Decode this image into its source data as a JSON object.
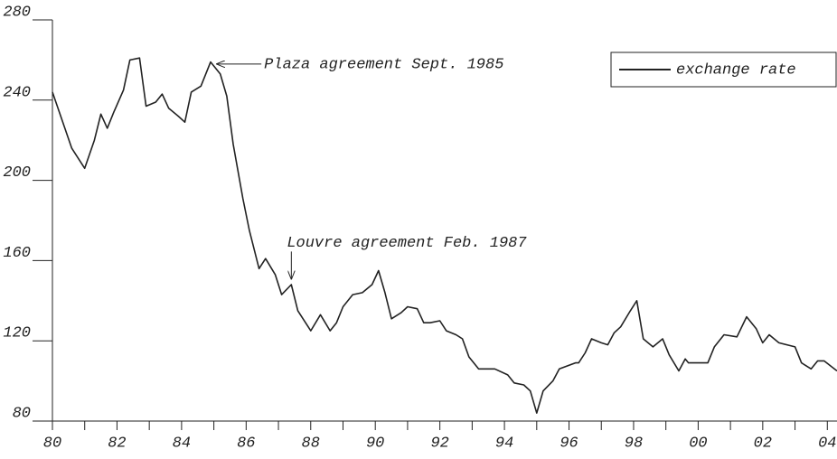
{
  "chart_data": {
    "type": "line",
    "x": [
      1980.0,
      1980.3,
      1980.6,
      1981.0,
      1981.3,
      1981.5,
      1981.7,
      1981.9,
      1982.2,
      1982.4,
      1982.7,
      1982.9,
      1983.2,
      1983.4,
      1983.6,
      1983.9,
      1984.1,
      1984.3,
      1984.6,
      1984.9,
      1985.2,
      1985.4,
      1985.6,
      1985.9,
      1986.1,
      1986.4,
      1986.6,
      1986.9,
      1987.1,
      1987.4,
      1987.6,
      1988.0,
      1988.3,
      1988.6,
      1988.8,
      1989.0,
      1989.3,
      1989.6,
      1989.9,
      1990.1,
      1990.3,
      1990.5,
      1990.8,
      1991.0,
      1991.3,
      1991.5,
      1991.7,
      1992.0,
      1992.2,
      1992.5,
      1992.7,
      1992.9,
      1993.2,
      1993.7,
      1994.1,
      1994.3,
      1994.6,
      1994.8,
      1995.0,
      1995.2,
      1995.5,
      1995.7,
      1996.2,
      1996.3,
      1996.5,
      1996.7,
      1997.0,
      1997.2,
      1997.4,
      1997.6,
      1997.9,
      1998.1,
      1998.3,
      1998.6,
      1998.9,
      1999.1,
      1999.4,
      1999.6,
      1999.7,
      2000.3,
      2000.5,
      2000.8,
      2001.2,
      2001.5,
      2001.8,
      2002.0,
      2002.2,
      2002.5,
      2003.0,
      2003.2,
      2003.5,
      2003.7,
      2003.9,
      2004.3
    ],
    "series": [
      {
        "name": "exchange rate",
        "color": "#222222",
        "values": [
          244,
          230,
          216,
          206,
          220,
          233,
          226,
          234,
          245,
          260,
          261,
          237,
          239,
          243,
          236,
          232,
          229,
          244,
          247,
          259,
          253,
          242,
          218,
          191,
          175,
          156,
          161,
          153,
          143,
          148,
          135,
          125,
          133,
          125,
          129,
          137,
          143,
          144,
          148,
          155,
          144,
          131,
          134,
          137,
          136,
          129,
          129,
          130,
          125,
          123,
          121,
          112,
          106,
          106,
          103,
          99,
          98,
          95,
          84,
          95,
          100,
          106,
          109,
          109,
          114,
          121,
          119,
          118,
          124,
          127,
          135,
          140,
          121,
          117,
          121,
          113,
          105,
          111,
          109,
          109,
          117,
          123,
          122,
          132,
          126,
          119,
          123,
          119,
          117,
          109,
          106,
          110,
          110,
          105
        ]
      }
    ],
    "xlim": [
      1980,
      2004.3
    ],
    "xticks": [
      {
        "value": 1980,
        "label": "80"
      },
      {
        "value": 1982,
        "label": "82"
      },
      {
        "value": 1984,
        "label": "84"
      },
      {
        "value": 1986,
        "label": "86"
      },
      {
        "value": 1988,
        "label": "88"
      },
      {
        "value": 1990,
        "label": "90"
      },
      {
        "value": 1992,
        "label": "92"
      },
      {
        "value": 1994,
        "label": "94"
      },
      {
        "value": 1996,
        "label": "96"
      },
      {
        "value": 1998,
        "label": "98"
      },
      {
        "value": 2000,
        "label": "00"
      },
      {
        "value": 2002,
        "label": "02"
      },
      {
        "value": 2004,
        "label": "04"
      }
    ],
    "xminorticks": [
      1981,
      1983,
      1985,
      1987,
      1989,
      1991,
      1993,
      1995,
      1997,
      1999,
      2001,
      2003
    ],
    "ylim": [
      80,
      280
    ],
    "yticks": [
      80,
      120,
      160,
      200,
      240,
      280
    ],
    "legend": "upper right",
    "annotations": [
      {
        "text": "Plaza agreement Sept. 1985",
        "x": 1985.1,
        "y": 258,
        "arrow_from": "right"
      },
      {
        "text": "Louvre agreement Feb. 1987",
        "x": 1987.4,
        "y": 151,
        "arrow_from": "above"
      }
    ]
  }
}
